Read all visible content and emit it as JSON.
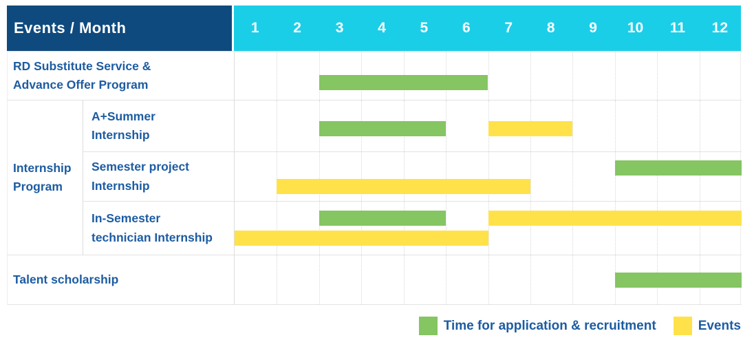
{
  "header": {
    "title": "Events / Month",
    "months": [
      "1",
      "2",
      "3",
      "4",
      "5",
      "6",
      "7",
      "8",
      "9",
      "10",
      "11",
      "12"
    ]
  },
  "colors": {
    "header_bg": "#0F4A7E",
    "months_bg": "#1BCEE8",
    "application": "#85C562",
    "events": "#FFE24A",
    "label_text": "#1D5CA2",
    "grid_line": "#E3E3E3"
  },
  "row_labels": {
    "rd": [
      "RD Substitute Service &",
      "Advance Offer Program"
    ],
    "internship_group": [
      "Internship",
      "Program"
    ],
    "a_summer": [
      "A+Summer",
      "Internship"
    ],
    "semester_project": [
      "Semester project",
      "Internship"
    ],
    "in_semester": [
      "In-Semester",
      "technician Internship"
    ],
    "talent": [
      "Talent scholarship"
    ]
  },
  "legend": {
    "items": [
      {
        "series": "application",
        "label": "Time for application & recruitment"
      },
      {
        "series": "events",
        "label": "Events"
      }
    ]
  },
  "chart_data": {
    "type": "gantt",
    "title": "Events / Month",
    "x_axis": {
      "label": "Month",
      "ticks": [
        1,
        2,
        3,
        4,
        5,
        6,
        7,
        8,
        9,
        10,
        11,
        12
      ],
      "range": [
        1,
        12
      ]
    },
    "series_legend": {
      "application": "Time for application & recruitment",
      "events": "Events"
    },
    "rows": [
      {
        "label": "RD Substitute Service & Advance Offer Program",
        "group": null,
        "lines": 1,
        "bars": [
          {
            "series": "application",
            "start_month": 3,
            "end_month": 6,
            "line": 0
          }
        ]
      },
      {
        "label": "A+Summer Internship",
        "group": "Internship Program",
        "lines": 1,
        "bars": [
          {
            "series": "application",
            "start_month": 3,
            "end_month": 5,
            "line": 0
          },
          {
            "series": "events",
            "start_month": 7,
            "end_month": 8,
            "line": 0
          }
        ]
      },
      {
        "label": "Semester project Internship",
        "group": "Internship Program",
        "lines": 2,
        "bars": [
          {
            "series": "application",
            "start_month": 10,
            "end_month": 12,
            "line": 0
          },
          {
            "series": "events",
            "start_month": 2,
            "end_month": 7,
            "line": 1
          }
        ]
      },
      {
        "label": "In-Semester technician Internship",
        "group": "Internship Program",
        "lines": 2,
        "bars": [
          {
            "series": "application",
            "start_month": 3,
            "end_month": 5,
            "line": 0
          },
          {
            "series": "events",
            "start_month": 7,
            "end_month": 12,
            "line": 0
          },
          {
            "series": "events",
            "start_month": 1,
            "end_month": 6,
            "line": 1
          }
        ]
      },
      {
        "label": "Talent scholarship",
        "group": null,
        "lines": 1,
        "bars": [
          {
            "series": "application",
            "start_month": 10,
            "end_month": 12,
            "line": 0
          }
        ]
      }
    ]
  }
}
